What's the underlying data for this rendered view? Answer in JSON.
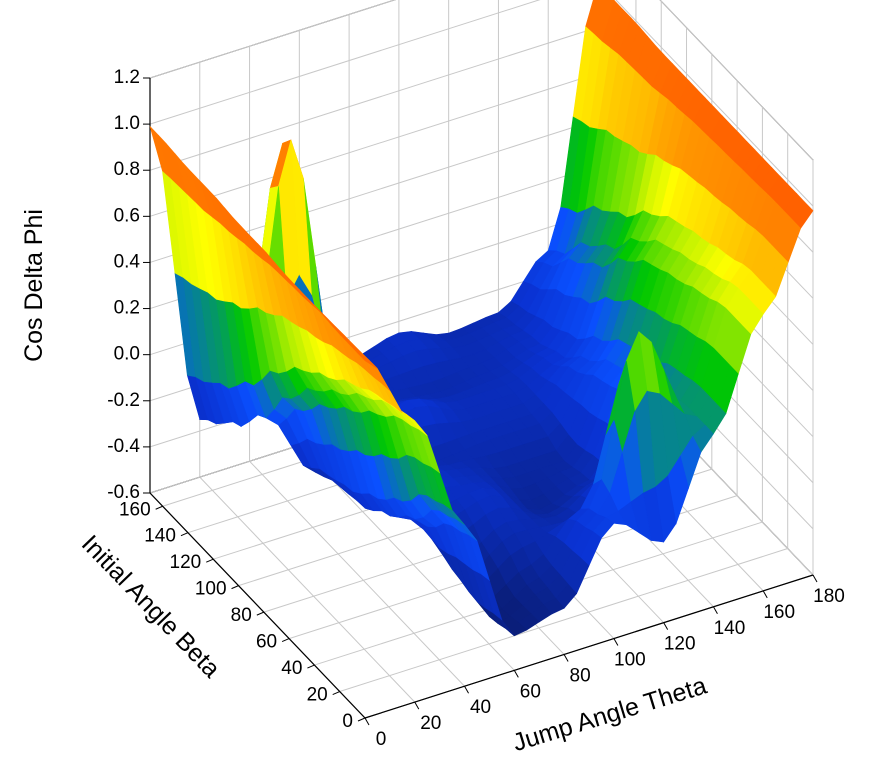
{
  "chart_data": {
    "type": "surface3d",
    "title": "",
    "xlabel": "Jump Angle Theta",
    "ylabel": "Initial Angle Beta",
    "zlabel": "Cos Delta Phi",
    "xlim": [
      0,
      180
    ],
    "ylim": [
      0,
      170
    ],
    "zlim": [
      -0.6,
      1.2
    ],
    "xticks": [
      "0",
      "20",
      "40",
      "60",
      "80",
      "100",
      "120",
      "140",
      "160",
      "180"
    ],
    "yticks": [
      "0",
      "20",
      "40",
      "60",
      "80",
      "100",
      "120",
      "140",
      "160"
    ],
    "zticks": [
      "-0.6",
      "-0.4",
      "-0.2",
      "0.0",
      "0.2",
      "0.4",
      "0.6",
      "0.8",
      "1.0",
      "1.2"
    ],
    "grid": true,
    "colormap": [
      "#0a1e7a",
      "#0a32d2",
      "#0a50ff",
      "#00c800",
      "#ffff00",
      "#ff9600",
      "#ff5000"
    ],
    "surface": {
      "x": [
        0,
        20,
        40,
        60,
        80,
        100,
        120,
        140,
        160,
        180
      ],
      "y": [
        0,
        20,
        40,
        60,
        80,
        100,
        120,
        140,
        160,
        170
      ],
      "z": [
        [
          0.95,
          0.62,
          0.1,
          -0.45,
          -0.4,
          -0.1,
          -0.25,
          0.15,
          0.6,
          0.98
        ],
        [
          0.95,
          0.58,
          0.05,
          -0.48,
          -0.38,
          -0.15,
          0.55,
          0.15,
          0.6,
          0.98
        ],
        [
          0.96,
          0.5,
          -0.1,
          -0.42,
          -0.3,
          -0.32,
          -0.2,
          0.12,
          0.55,
          0.98
        ],
        [
          0.96,
          0.4,
          -0.2,
          -0.3,
          -0.25,
          -0.38,
          -0.32,
          0.05,
          0.5,
          0.98
        ],
        [
          0.97,
          0.3,
          -0.28,
          -0.2,
          -0.28,
          -0.35,
          -0.35,
          0.0,
          0.45,
          0.98
        ],
        [
          0.97,
          0.15,
          -0.3,
          -0.25,
          -0.32,
          -0.3,
          -0.3,
          -0.1,
          0.35,
          0.98
        ],
        [
          0.98,
          -0.05,
          -0.35,
          -0.3,
          -0.2,
          -0.28,
          -0.28,
          -0.2,
          0.2,
          0.98
        ],
        [
          0.98,
          -0.2,
          1.05,
          -0.18,
          -0.3,
          -0.32,
          -0.3,
          -0.25,
          0.1,
          0.99
        ],
        [
          0.99,
          -0.3,
          -0.2,
          -0.22,
          -0.28,
          -0.25,
          -0.3,
          -0.28,
          -0.05,
          0.99
        ],
        [
          0.99,
          -0.35,
          -0.25,
          -0.2,
          -0.3,
          -0.25,
          -0.32,
          -0.3,
          -0.1,
          0.99
        ]
      ]
    }
  }
}
